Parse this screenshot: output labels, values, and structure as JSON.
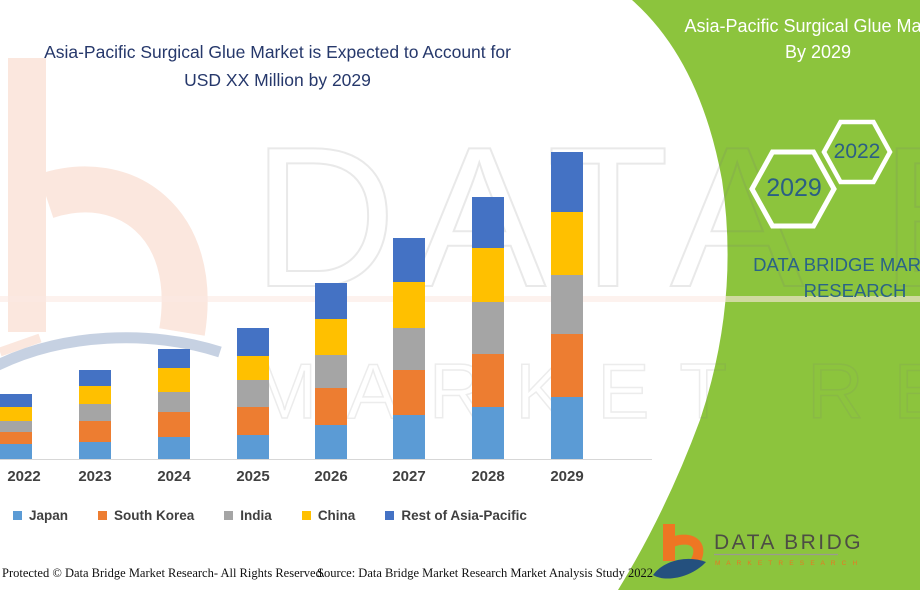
{
  "title": {
    "line1": "Asia-Pacific Surgical Glue Market is Expected to Account for",
    "line2": "USD XX Million by 2029"
  },
  "right_panel": {
    "heading_line1": "Asia-Pacific Surgical Glue Market",
    "heading_line2": "By 2029",
    "hexagon_large_label": "2029",
    "hexagon_small_label": "2022",
    "brand_line1": "DATA BRIDGE MARKET",
    "brand_line2": "RESEARCH",
    "bg_color": "#8CC43D",
    "text_color": "#2A6387"
  },
  "watermark": {
    "line1": "DATA BRIDGE",
    "line2": "MARKET RESEARCH"
  },
  "chart_data": {
    "type": "bar",
    "stacked": true,
    "title": "Asia-Pacific Surgical Glue Market is Expected to Account for USD XX Million by 2029",
    "xlabel": "",
    "ylabel": "",
    "y_axis_shown": false,
    "grid": false,
    "legend_position": "bottom",
    "value_unit": "USD Million (actual values masked as XX; series values are relative estimates from bar heights)",
    "categories": [
      "2022",
      "2023",
      "2024",
      "2025",
      "2026",
      "2027",
      "2028",
      "2029"
    ],
    "series": [
      {
        "name": "Japan",
        "color": "#5B9BD5",
        "values": [
          15,
          17,
          22,
          24,
          34,
          44,
          52,
          62
        ]
      },
      {
        "name": "South Korea",
        "color": "#ED7D31",
        "values": [
          12,
          21,
          25,
          28,
          37,
          45,
          53,
          63
        ]
      },
      {
        "name": "India",
        "color": "#A5A5A5",
        "values": [
          11,
          17,
          20,
          27,
          33,
          42,
          52,
          59
        ]
      },
      {
        "name": "China",
        "color": "#FFC000",
        "values": [
          14,
          18,
          24,
          24,
          36,
          46,
          54,
          63
        ]
      },
      {
        "name": "Rest of Asia-Pacific",
        "color": "#4472C4",
        "values": [
          13,
          16,
          19,
          28,
          36,
          44,
          51,
          60
        ]
      }
    ],
    "totals": [
      65,
      89,
      110,
      131,
      176,
      221,
      262,
      307
    ]
  },
  "footer": {
    "left": "Protected © Data Bridge Market Research- All Rights Reserved.",
    "right": "Source: Data Bridge Market Research Market Analysis Study 2022"
  },
  "logo": {
    "name": "DATA BRIDGE",
    "subtitle": "M A R K E T   R E S E A R C H"
  }
}
